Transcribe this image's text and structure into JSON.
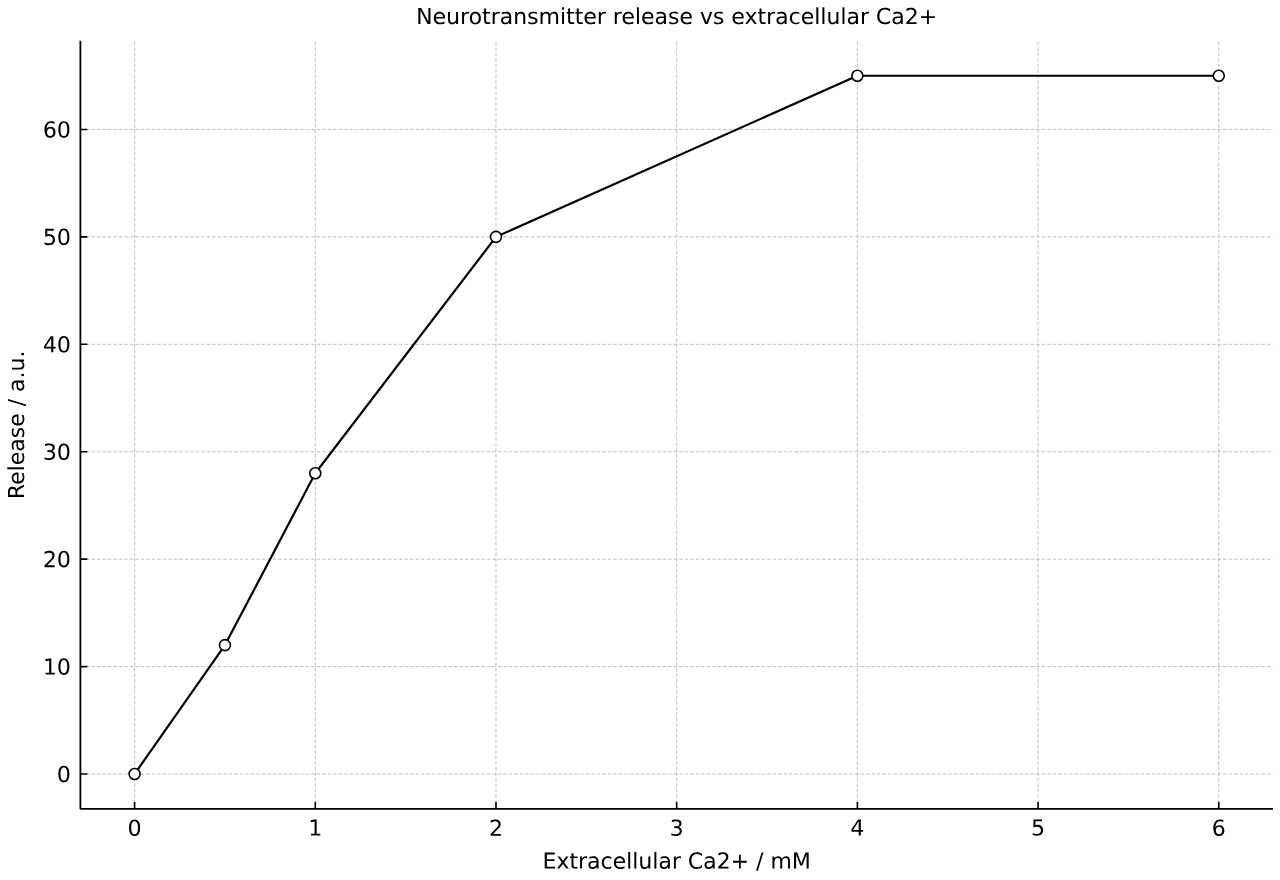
{
  "chart_data": {
    "type": "line",
    "title": "Neurotransmitter release vs extracellular Ca2+",
    "xlabel": "Extracellular Ca2+ / mM",
    "ylabel": "Release / a.u.",
    "x": [
      0,
      0.5,
      1,
      2,
      4,
      6
    ],
    "series": [
      {
        "color": "#000000",
        "values": [
          0,
          12,
          28,
          50,
          65,
          65
        ]
      }
    ],
    "xlim": [
      -0.3,
      6.3
    ],
    "ylim": [
      -3.25,
      68.25
    ],
    "xticks": [
      0,
      1,
      2,
      3,
      4,
      5,
      6
    ],
    "yticks": [
      0,
      10,
      20,
      30,
      40,
      50,
      60
    ],
    "grid": true,
    "marker": "circle",
    "line_style": "solid"
  }
}
